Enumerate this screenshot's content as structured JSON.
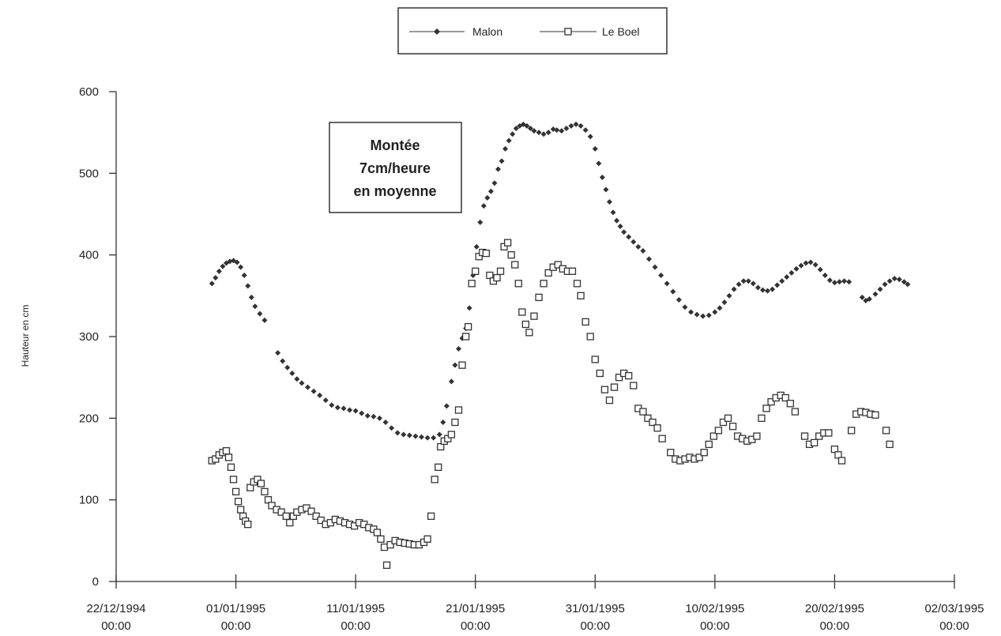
{
  "chart_data": {
    "type": "scatter",
    "ylabel": "Hauteur en cm",
    "ylim": [
      0,
      600
    ],
    "y_ticks": [
      0,
      100,
      200,
      300,
      400,
      500,
      600
    ],
    "x_ticks": [
      {
        "line1": "22/12/1994",
        "line2": "00:00",
        "day": 0
      },
      {
        "line1": "01/01/1995",
        "line2": "00:00",
        "day": 10
      },
      {
        "line1": "11/01/1995",
        "line2": "00:00",
        "day": 20
      },
      {
        "line1": "21/01/1995",
        "line2": "00:00",
        "day": 30
      },
      {
        "line1": "31/01/1995",
        "line2": "00:00",
        "day": 40
      },
      {
        "line1": "10/02/1995",
        "line2": "00:00",
        "day": 50
      },
      {
        "line1": "20/02/1995",
        "line2": "00:00",
        "day": 60
      },
      {
        "line1": "02/03/1995",
        "line2": "00:00",
        "day": 70
      }
    ],
    "annotation": [
      "Montée",
      "7cm/heure",
      "en moyenne"
    ],
    "legend": {
      "position": "top-center"
    },
    "series": [
      {
        "name": "Malon",
        "marker": "diamond",
        "color": "#333333",
        "points": [
          [
            8.0,
            365
          ],
          [
            8.3,
            372
          ],
          [
            8.6,
            380
          ],
          [
            8.9,
            386
          ],
          [
            9.2,
            390
          ],
          [
            9.5,
            392
          ],
          [
            9.8,
            393
          ],
          [
            10.1,
            391
          ],
          [
            10.4,
            385
          ],
          [
            10.7,
            375
          ],
          [
            11.0,
            362
          ],
          [
            11.3,
            348
          ],
          [
            11.6,
            337
          ],
          [
            12.0,
            328
          ],
          [
            12.4,
            320
          ],
          [
            13.5,
            280
          ],
          [
            13.9,
            270
          ],
          [
            14.3,
            262
          ],
          [
            14.7,
            255
          ],
          [
            15.1,
            248
          ],
          [
            15.5,
            243
          ],
          [
            16.0,
            238
          ],
          [
            16.5,
            233
          ],
          [
            17.0,
            228
          ],
          [
            17.5,
            222
          ],
          [
            18.0,
            216
          ],
          [
            18.5,
            213
          ],
          [
            19.0,
            212
          ],
          [
            19.5,
            210
          ],
          [
            20.0,
            209
          ],
          [
            20.5,
            206
          ],
          [
            21.0,
            203
          ],
          [
            21.5,
            202
          ],
          [
            22.0,
            200
          ],
          [
            22.5,
            195
          ],
          [
            23.0,
            188
          ],
          [
            23.5,
            182
          ],
          [
            24.0,
            180
          ],
          [
            24.5,
            179
          ],
          [
            25.0,
            178
          ],
          [
            25.5,
            177
          ],
          [
            26.0,
            176
          ],
          [
            26.5,
            176
          ],
          [
            27.0,
            180
          ],
          [
            27.3,
            195
          ],
          [
            27.6,
            215
          ],
          [
            28.0,
            245
          ],
          [
            28.3,
            265
          ],
          [
            28.6,
            285
          ],
          [
            28.9,
            298
          ],
          [
            29.2,
            310
          ],
          [
            29.5,
            335
          ],
          [
            29.8,
            375
          ],
          [
            30.1,
            410
          ],
          [
            30.4,
            440
          ],
          [
            30.7,
            460
          ],
          [
            31.0,
            470
          ],
          [
            31.3,
            478
          ],
          [
            31.6,
            488
          ],
          [
            31.9,
            505
          ],
          [
            32.2,
            515
          ],
          [
            32.5,
            530
          ],
          [
            32.8,
            540
          ],
          [
            33.1,
            548
          ],
          [
            33.4,
            555
          ],
          [
            33.7,
            558
          ],
          [
            34.0,
            560
          ],
          [
            34.3,
            558
          ],
          [
            34.6,
            555
          ],
          [
            34.9,
            552
          ],
          [
            35.3,
            550
          ],
          [
            35.7,
            548
          ],
          [
            36.1,
            550
          ],
          [
            36.5,
            554
          ],
          [
            36.8,
            553
          ],
          [
            37.2,
            552
          ],
          [
            37.6,
            555
          ],
          [
            38.0,
            558
          ],
          [
            38.4,
            560
          ],
          [
            38.8,
            558
          ],
          [
            39.2,
            553
          ],
          [
            39.6,
            545
          ],
          [
            40.0,
            530
          ],
          [
            40.3,
            512
          ],
          [
            40.6,
            495
          ],
          [
            40.9,
            480
          ],
          [
            41.2,
            465
          ],
          [
            41.5,
            452
          ],
          [
            41.8,
            442
          ],
          [
            42.1,
            435
          ],
          [
            42.4,
            428
          ],
          [
            42.8,
            422
          ],
          [
            43.2,
            416
          ],
          [
            43.6,
            410
          ],
          [
            44.0,
            405
          ],
          [
            44.5,
            395
          ],
          [
            45.0,
            385
          ],
          [
            45.5,
            375
          ],
          [
            46.0,
            365
          ],
          [
            46.5,
            355
          ],
          [
            47.0,
            345
          ],
          [
            47.5,
            336
          ],
          [
            48.0,
            330
          ],
          [
            48.5,
            327
          ],
          [
            49.0,
            325
          ],
          [
            49.5,
            326
          ],
          [
            50.0,
            330
          ],
          [
            50.4,
            335
          ],
          [
            50.8,
            342
          ],
          [
            51.2,
            350
          ],
          [
            51.6,
            358
          ],
          [
            52.0,
            364
          ],
          [
            52.4,
            368
          ],
          [
            52.8,
            368
          ],
          [
            53.2,
            365
          ],
          [
            53.6,
            360
          ],
          [
            54.0,
            357
          ],
          [
            54.4,
            356
          ],
          [
            54.8,
            358
          ],
          [
            55.2,
            363
          ],
          [
            55.6,
            368
          ],
          [
            56.0,
            373
          ],
          [
            56.4,
            378
          ],
          [
            56.8,
            383
          ],
          [
            57.2,
            387
          ],
          [
            57.6,
            390
          ],
          [
            58.0,
            391
          ],
          [
            58.4,
            388
          ],
          [
            58.8,
            382
          ],
          [
            59.2,
            375
          ],
          [
            59.6,
            369
          ],
          [
            60.0,
            366
          ],
          [
            60.4,
            367
          ],
          [
            60.8,
            368
          ],
          [
            61.2,
            367
          ],
          [
            62.3,
            348
          ],
          [
            62.6,
            344
          ],
          [
            62.9,
            346
          ],
          [
            63.4,
            352
          ],
          [
            63.8,
            358
          ],
          [
            64.2,
            364
          ],
          [
            64.6,
            368
          ],
          [
            65.0,
            371
          ],
          [
            65.4,
            370
          ],
          [
            65.8,
            367
          ],
          [
            66.1,
            364
          ]
        ]
      },
      {
        "name": "Le Boel",
        "marker": "square",
        "color": "#333333",
        "points": [
          [
            8.0,
            148
          ],
          [
            8.3,
            150
          ],
          [
            8.6,
            155
          ],
          [
            8.9,
            158
          ],
          [
            9.2,
            160
          ],
          [
            9.4,
            152
          ],
          [
            9.6,
            140
          ],
          [
            9.8,
            125
          ],
          [
            10.0,
            110
          ],
          [
            10.2,
            98
          ],
          [
            10.4,
            88
          ],
          [
            10.6,
            80
          ],
          [
            10.8,
            74
          ],
          [
            11.0,
            70
          ],
          [
            11.2,
            115
          ],
          [
            11.5,
            122
          ],
          [
            11.8,
            125
          ],
          [
            12.1,
            120
          ],
          [
            12.4,
            110
          ],
          [
            12.7,
            100
          ],
          [
            13.0,
            93
          ],
          [
            13.4,
            88
          ],
          [
            13.8,
            85
          ],
          [
            14.2,
            80
          ],
          [
            14.5,
            72
          ],
          [
            14.8,
            80
          ],
          [
            15.1,
            85
          ],
          [
            15.5,
            88
          ],
          [
            15.9,
            90
          ],
          [
            16.3,
            86
          ],
          [
            16.7,
            80
          ],
          [
            17.1,
            75
          ],
          [
            17.5,
            70
          ],
          [
            17.9,
            72
          ],
          [
            18.3,
            76
          ],
          [
            18.7,
            74
          ],
          [
            19.1,
            72
          ],
          [
            19.5,
            70
          ],
          [
            19.9,
            68
          ],
          [
            20.3,
            72
          ],
          [
            20.7,
            70
          ],
          [
            21.1,
            66
          ],
          [
            21.5,
            64
          ],
          [
            21.8,
            60
          ],
          [
            22.1,
            52
          ],
          [
            22.4,
            42
          ],
          [
            22.6,
            20
          ],
          [
            22.9,
            45
          ],
          [
            23.3,
            50
          ],
          [
            23.7,
            48
          ],
          [
            24.1,
            47
          ],
          [
            24.5,
            46
          ],
          [
            24.9,
            45
          ],
          [
            25.3,
            45
          ],
          [
            25.7,
            48
          ],
          [
            26.0,
            52
          ],
          [
            26.3,
            80
          ],
          [
            26.6,
            125
          ],
          [
            26.9,
            140
          ],
          [
            27.1,
            165
          ],
          [
            27.4,
            172
          ],
          [
            27.7,
            175
          ],
          [
            28.0,
            180
          ],
          [
            28.3,
            195
          ],
          [
            28.6,
            210
          ],
          [
            28.9,
            265
          ],
          [
            29.2,
            300
          ],
          [
            29.4,
            312
          ],
          [
            29.7,
            365
          ],
          [
            30.0,
            380
          ],
          [
            30.3,
            398
          ],
          [
            30.6,
            403
          ],
          [
            30.9,
            402
          ],
          [
            31.2,
            375
          ],
          [
            31.5,
            368
          ],
          [
            31.8,
            372
          ],
          [
            32.1,
            380
          ],
          [
            32.4,
            410
          ],
          [
            32.7,
            415
          ],
          [
            33.0,
            400
          ],
          [
            33.3,
            388
          ],
          [
            33.6,
            365
          ],
          [
            33.9,
            330
          ],
          [
            34.2,
            315
          ],
          [
            34.5,
            305
          ],
          [
            34.9,
            325
          ],
          [
            35.3,
            348
          ],
          [
            35.7,
            365
          ],
          [
            36.1,
            378
          ],
          [
            36.5,
            385
          ],
          [
            36.9,
            388
          ],
          [
            37.3,
            383
          ],
          [
            37.7,
            380
          ],
          [
            38.1,
            380
          ],
          [
            38.5,
            365
          ],
          [
            38.8,
            350
          ],
          [
            39.2,
            318
          ],
          [
            39.6,
            300
          ],
          [
            40.0,
            272
          ],
          [
            40.4,
            255
          ],
          [
            40.8,
            235
          ],
          [
            41.2,
            222
          ],
          [
            41.6,
            238
          ],
          [
            42.0,
            250
          ],
          [
            42.4,
            255
          ],
          [
            42.8,
            252
          ],
          [
            43.2,
            240
          ],
          [
            43.6,
            212
          ],
          [
            44.0,
            208
          ],
          [
            44.4,
            200
          ],
          [
            44.8,
            195
          ],
          [
            45.2,
            188
          ],
          [
            45.6,
            175
          ],
          [
            46.3,
            158
          ],
          [
            46.7,
            150
          ],
          [
            47.1,
            148
          ],
          [
            47.5,
            150
          ],
          [
            47.9,
            152
          ],
          [
            48.3,
            150
          ],
          [
            48.7,
            152
          ],
          [
            49.1,
            158
          ],
          [
            49.5,
            168
          ],
          [
            49.9,
            178
          ],
          [
            50.3,
            185
          ],
          [
            50.7,
            195
          ],
          [
            51.1,
            200
          ],
          [
            51.5,
            190
          ],
          [
            51.9,
            178
          ],
          [
            52.3,
            175
          ],
          [
            52.7,
            172
          ],
          [
            53.1,
            174
          ],
          [
            53.5,
            178
          ],
          [
            53.9,
            200
          ],
          [
            54.3,
            212
          ],
          [
            54.7,
            220
          ],
          [
            55.1,
            225
          ],
          [
            55.5,
            228
          ],
          [
            55.9,
            225
          ],
          [
            56.3,
            218
          ],
          [
            56.7,
            208
          ],
          [
            57.5,
            178
          ],
          [
            57.9,
            168
          ],
          [
            58.3,
            170
          ],
          [
            58.7,
            178
          ],
          [
            59.1,
            182
          ],
          [
            59.5,
            182
          ],
          [
            60.0,
            162
          ],
          [
            60.3,
            155
          ],
          [
            60.6,
            148
          ],
          [
            61.4,
            185
          ],
          [
            61.8,
            205
          ],
          [
            62.2,
            208
          ],
          [
            62.6,
            207
          ],
          [
            63.0,
            205
          ],
          [
            63.4,
            204
          ],
          [
            64.3,
            185
          ],
          [
            64.6,
            168
          ]
        ]
      }
    ]
  }
}
